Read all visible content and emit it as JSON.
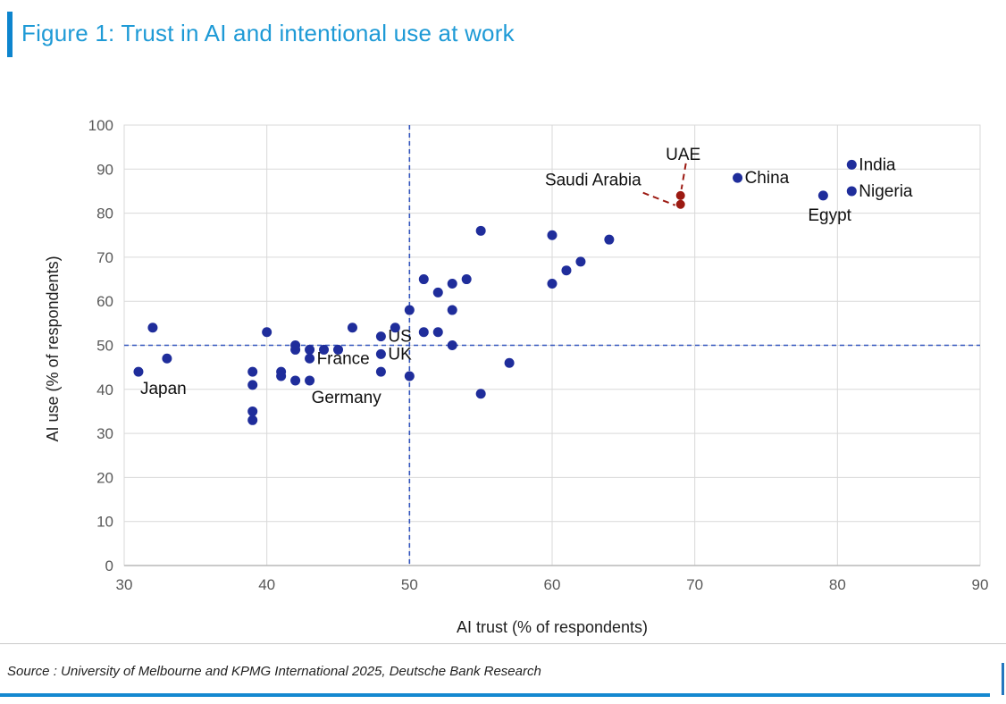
{
  "title": "Figure 1: Trust in AI and intentional use at work",
  "source": {
    "text": "Source : University of Melbourne and KPMG International 2025, Deutsche Bank Research"
  },
  "colors": {
    "title_blue": "#1e9ad6",
    "accent_bar_blue": "#0d85ce",
    "bottom_rule_blue": "#1488d0",
    "point_navy": "#1f2d9b",
    "point_dark_red": "#9c1a12",
    "reference_dash_blue": "#3355be",
    "gridline_gray": "#d9d9d9",
    "axis_line_gray": "#b9b9b9",
    "tick_text_gray": "#595959",
    "label_text": "#111111"
  },
  "chart_data": {
    "type": "scatter",
    "title": "",
    "xlabel": "AI trust (% of respondents)",
    "ylabel": "AI use (% of respondents)",
    "xlim": [
      30,
      90
    ],
    "ylim": [
      0,
      100
    ],
    "x_ticks": [
      30,
      40,
      50,
      60,
      70,
      80,
      90
    ],
    "y_ticks": [
      0,
      10,
      20,
      30,
      40,
      50,
      60,
      70,
      80,
      90,
      100
    ],
    "grid": true,
    "legend": "none",
    "reference_lines": {
      "x": 50,
      "y": 50
    },
    "series": [
      {
        "name": "countries",
        "color": "#1f2d9b",
        "marker_radius": 5.5,
        "points": [
          {
            "x": 31,
            "y": 44,
            "label": "Japan",
            "label_pos": "below"
          },
          {
            "x": 32,
            "y": 54
          },
          {
            "x": 33,
            "y": 47
          },
          {
            "x": 39,
            "y": 44
          },
          {
            "x": 39,
            "y": 41
          },
          {
            "x": 39,
            "y": 35
          },
          {
            "x": 39,
            "y": 33
          },
          {
            "x": 40,
            "y": 53
          },
          {
            "x": 41,
            "y": 44
          },
          {
            "x": 41,
            "y": 43
          },
          {
            "x": 42,
            "y": 50
          },
          {
            "x": 42,
            "y": 49
          },
          {
            "x": 42,
            "y": 42
          },
          {
            "x": 43,
            "y": 49
          },
          {
            "x": 43,
            "y": 47,
            "label": "France",
            "label_pos": "right"
          },
          {
            "x": 43,
            "y": 42,
            "label": "Germany",
            "label_pos": "below"
          },
          {
            "x": 44,
            "y": 49
          },
          {
            "x": 45,
            "y": 49
          },
          {
            "x": 46,
            "y": 54
          },
          {
            "x": 48,
            "y": 52,
            "label": "US",
            "label_pos": "right"
          },
          {
            "x": 48,
            "y": 48,
            "label": "UK",
            "label_pos": "right"
          },
          {
            "x": 48,
            "y": 44
          },
          {
            "x": 49,
            "y": 54
          },
          {
            "x": 50,
            "y": 58
          },
          {
            "x": 50,
            "y": 43
          },
          {
            "x": 51,
            "y": 65
          },
          {
            "x": 51,
            "y": 53
          },
          {
            "x": 52,
            "y": 62
          },
          {
            "x": 52,
            "y": 53
          },
          {
            "x": 53,
            "y": 64
          },
          {
            "x": 53,
            "y": 58
          },
          {
            "x": 53,
            "y": 50
          },
          {
            "x": 54,
            "y": 65
          },
          {
            "x": 55,
            "y": 76
          },
          {
            "x": 55,
            "y": 39
          },
          {
            "x": 57,
            "y": 46
          },
          {
            "x": 60,
            "y": 75
          },
          {
            "x": 60,
            "y": 64
          },
          {
            "x": 61,
            "y": 67
          },
          {
            "x": 62,
            "y": 69
          },
          {
            "x": 64,
            "y": 74
          },
          {
            "x": 73,
            "y": 88,
            "label": "China",
            "label_pos": "right"
          },
          {
            "x": 79,
            "y": 84,
            "label": "Egypt",
            "label_pos": "below-left"
          },
          {
            "x": 81,
            "y": 91,
            "label": "India",
            "label_pos": "right"
          },
          {
            "x": 81,
            "y": 85,
            "label": "Nigeria",
            "label_pos": "right"
          }
        ]
      },
      {
        "name": "highlighted",
        "color": "#9c1a12",
        "marker_radius": 5,
        "points": [
          {
            "x": 69,
            "y": 84,
            "label": "UAE",
            "label_pos": "above-leader"
          },
          {
            "x": 69,
            "y": 82,
            "label": "Saudi Arabia",
            "label_pos": "left-leader"
          }
        ]
      }
    ]
  }
}
